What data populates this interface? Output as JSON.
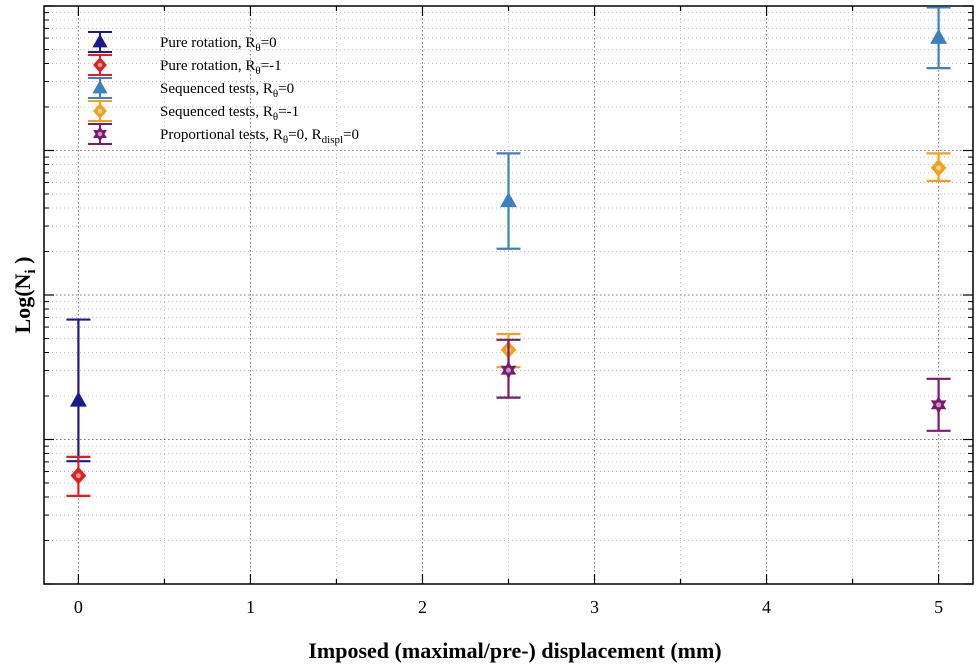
{
  "chart_data": {
    "type": "scatter",
    "xlabel": "Imposed (maximal/pre-) displacement (mm)",
    "ylabel": "Log(N",
    "ylabel_sub": "i",
    "ylabel_end": " )",
    "x_ticks": [
      "0",
      "1",
      "2",
      "3",
      "4",
      "5"
    ],
    "xlim": [
      -0.2,
      5.2
    ],
    "ylim": [
      0,
      4
    ],
    "grid": true,
    "legend_position": "top-left",
    "series": [
      {
        "name": "Pure rotation, R",
        "name_sub": "θ",
        "name_rest": "=0",
        "color": "#1a1a8c",
        "marker": "triangle-up",
        "points": [
          {
            "x": 0,
            "y": 1.27,
            "err_low": 0.42,
            "err_high": 0.56
          }
        ]
      },
      {
        "name": "Pure rotation, R",
        "name_sub": "θ",
        "name_rest": "=-1",
        "color": "#e02020",
        "marker": "diamond",
        "points": [
          {
            "x": 0,
            "y": 0.75,
            "err_low": 0.14,
            "err_high": 0.13
          }
        ]
      },
      {
        "name": "Sequenced tests, R",
        "name_sub": "θ",
        "name_rest": "=0",
        "color": "#3d7fc1",
        "marker": "triangle-up",
        "points": [
          {
            "x": 2.5,
            "y": 2.65,
            "err_low": 0.33,
            "err_high": 0.33
          },
          {
            "x": 5,
            "y": 3.78,
            "err_low": 0.21,
            "err_high": 0.21
          }
        ]
      },
      {
        "name": "Sequenced tests, R",
        "name_sub": "θ",
        "name_rest": "=-1",
        "color": "#f5a01a",
        "marker": "diamond",
        "points": [
          {
            "x": 2.5,
            "y": 1.62,
            "err_low": 0.12,
            "err_high": 0.11
          },
          {
            "x": 5,
            "y": 2.88,
            "err_low": 0.09,
            "err_high": 0.1
          }
        ]
      },
      {
        "name": "Proportional tests, R",
        "name_sub": "θ",
        "name_rest": "=0, R",
        "name_sub2": "displ",
        "name_rest2": "=0",
        "color": "#7a1a6e",
        "marker": "star",
        "points": [
          {
            "x": 2.5,
            "y": 1.48,
            "err_low": 0.19,
            "err_high": 0.21
          },
          {
            "x": 5,
            "y": 1.24,
            "err_low": 0.18,
            "err_high": 0.18
          }
        ]
      }
    ]
  }
}
